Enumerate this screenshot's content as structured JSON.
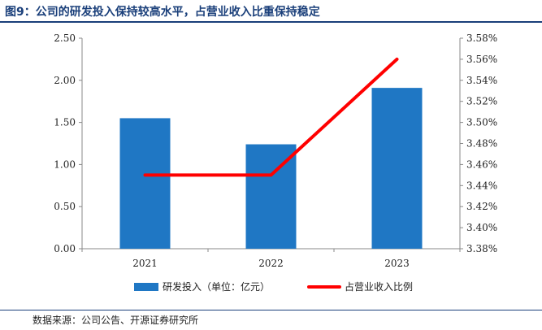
{
  "title": "图9：公司的研发投入保持较高水平，占营业收入比重保持稳定",
  "source": "数据来源：公司公告、开源证券研究所",
  "colors": {
    "bar": "#1f77c4",
    "line": "#ff0000",
    "title": "#1a3f7a"
  },
  "chart_data": {
    "type": "bar+line",
    "categories": [
      "2021",
      "2022",
      "2023"
    ],
    "series": [
      {
        "name": "研发投入（单位：亿元）",
        "type": "bar",
        "axis": "left",
        "values": [
          1.55,
          1.24,
          1.91
        ]
      },
      {
        "name": "占营业收入比例",
        "type": "line",
        "axis": "right",
        "values": [
          0.0345,
          0.0345,
          0.0356
        ]
      }
    ],
    "y_left": {
      "min": 0,
      "max": 2.5,
      "ticks": [
        "0.00",
        "0.50",
        "1.00",
        "1.50",
        "2.00",
        "2.50"
      ]
    },
    "y_right": {
      "min": 0.0338,
      "max": 0.0358,
      "ticks": [
        "3.38%",
        "3.40%",
        "3.42%",
        "3.44%",
        "3.46%",
        "3.48%",
        "3.50%",
        "3.52%",
        "3.54%",
        "3.56%",
        "3.58%"
      ]
    },
    "legend_position": "bottom",
    "grid": false
  }
}
